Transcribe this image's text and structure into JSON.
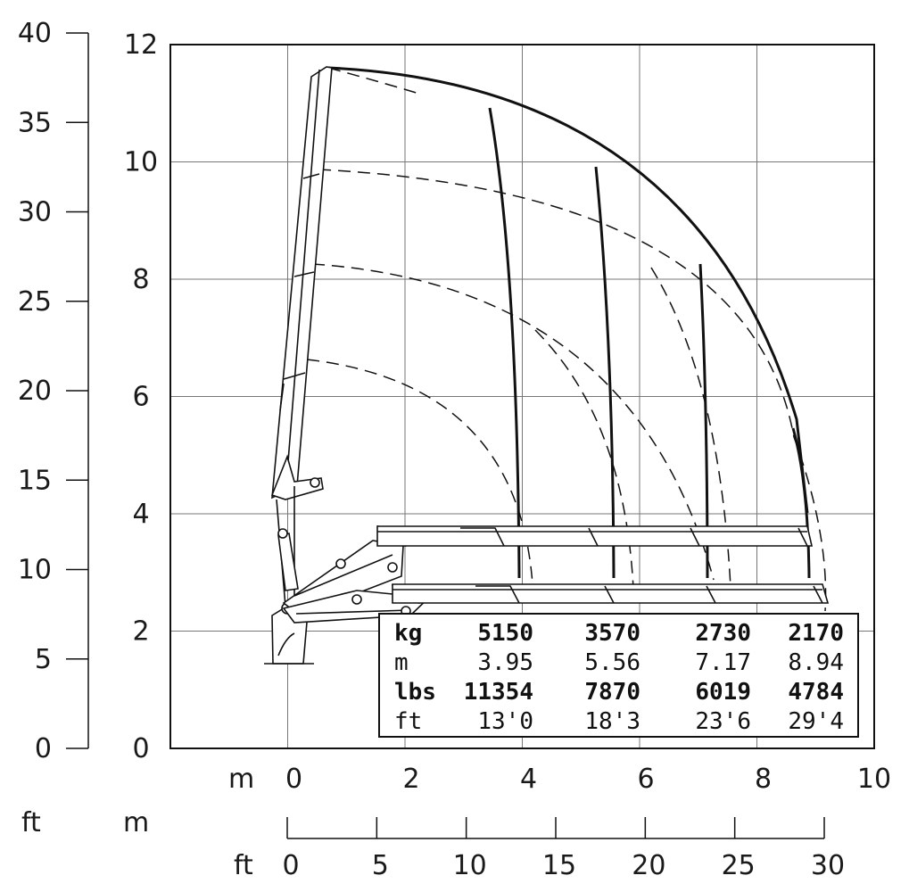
{
  "units": {
    "left_ft": "ft",
    "left_m": "m",
    "bottom_m": "m",
    "bottom_ft": "ft"
  },
  "left_ft_axis": {
    "ticks": [
      0,
      5,
      10,
      15,
      20,
      25,
      30,
      35,
      40
    ]
  },
  "left_m_axis": {
    "ticks": [
      0,
      2,
      4,
      6,
      8,
      10,
      12
    ]
  },
  "bottom_m_axis": {
    "ticks": [
      0,
      2,
      4,
      6,
      8,
      10
    ]
  },
  "bottom_ft_axis": {
    "ticks": [
      0,
      5,
      10,
      15,
      20,
      25,
      30
    ]
  },
  "load_table": {
    "rows": [
      {
        "unit": "kg",
        "values": [
          "5150",
          "3570",
          "2730",
          "2170"
        ],
        "bold": true
      },
      {
        "unit": "m",
        "values": [
          "3.95",
          "5.56",
          "7.17",
          "8.94"
        ],
        "bold": false
      },
      {
        "unit": "lbs",
        "values": [
          "11354",
          "7870",
          "6019",
          "4784"
        ],
        "bold": true
      },
      {
        "unit": "ft",
        "values": [
          "13'0",
          "18'3",
          "23'6",
          "29'4"
        ],
        "bold": false
      }
    ]
  },
  "chart_data": {
    "type": "line",
    "x_range_m": [
      -2,
      10
    ],
    "y_range_m": [
      0,
      12
    ],
    "outer_envelope": {
      "x": [
        0.7,
        2,
        3.45,
        5.25,
        7,
        8.5,
        8.94
      ],
      "y": [
        11.6,
        11.4,
        10.9,
        9.9,
        8.3,
        5.5,
        4.0
      ]
    },
    "reach_lines_m": [
      3.95,
      5.56,
      7.17,
      8.94
    ]
  }
}
